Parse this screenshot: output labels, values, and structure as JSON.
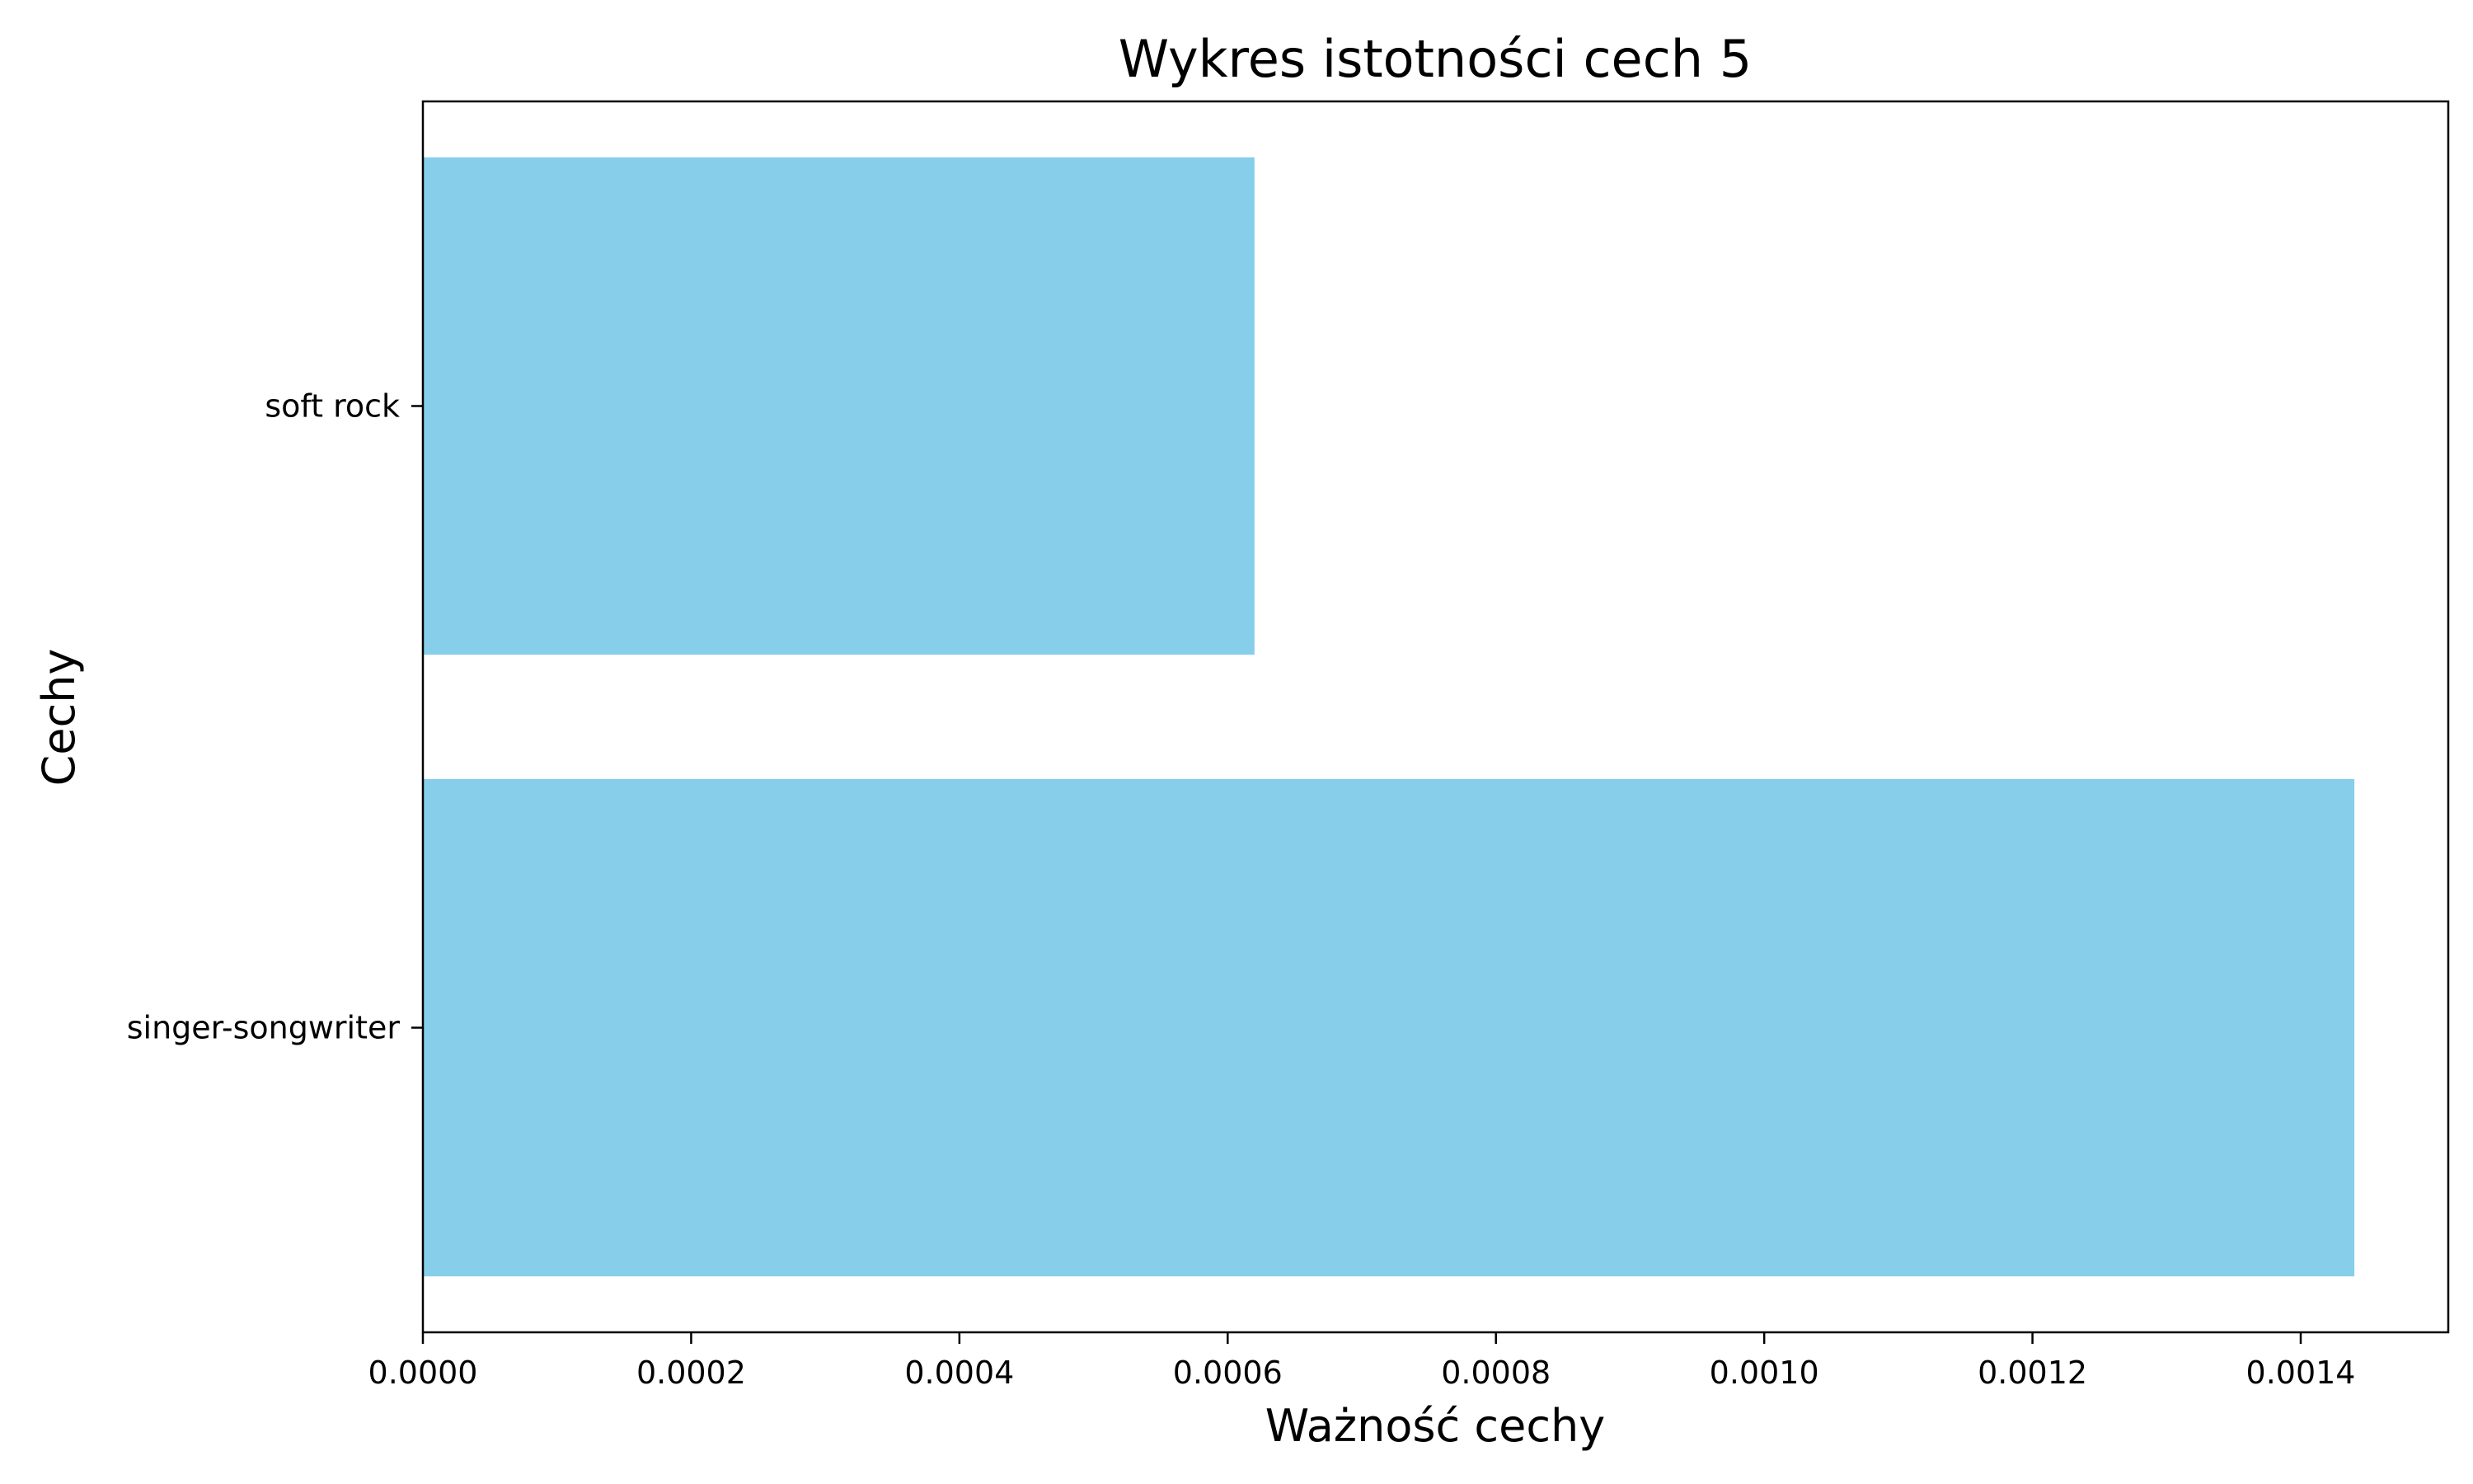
{
  "chart_data": {
    "type": "bar",
    "orientation": "horizontal",
    "title": "Wykres istotności cech 5",
    "xlabel": "Ważność cechy",
    "ylabel": "Cechy",
    "categories": [
      "singer-songwriter",
      "soft rock"
    ],
    "values": [
      0.00144,
      0.00062
    ],
    "xlim": [
      0,
      0.00151
    ],
    "xticks": [
      "0.0000",
      "0.0002",
      "0.0004",
      "0.0006",
      "0.0008",
      "0.0010",
      "0.0012",
      "0.0014"
    ],
    "xtick_values": [
      0,
      0.0002,
      0.0004,
      0.0006,
      0.0008,
      0.001,
      0.0012,
      0.0014
    ],
    "bar_color": "#87CEEB",
    "grid": false,
    "legend": null
  }
}
